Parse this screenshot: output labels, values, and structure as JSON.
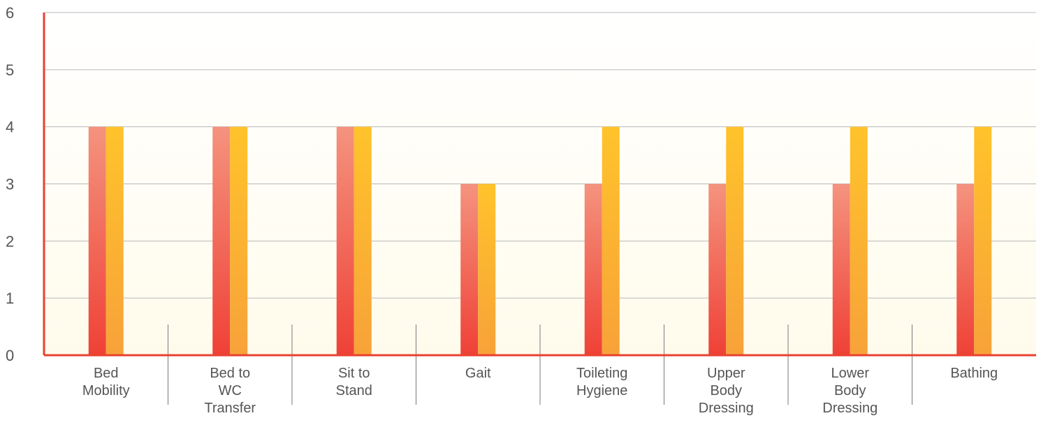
{
  "chart_data": {
    "type": "bar",
    "title": "",
    "xlabel": "",
    "ylabel": "",
    "ylim": [
      0,
      6
    ],
    "y_ticks": [
      "0",
      "1",
      "2",
      "3",
      "4",
      "5",
      "6"
    ],
    "grid": true,
    "categories": [
      [
        "Bed",
        "Mobility"
      ],
      [
        "Bed to",
        "WC",
        "Transfer"
      ],
      [
        "Sit to",
        "Stand"
      ],
      [
        "Gait"
      ],
      [
        "Toileting",
        "Hygiene"
      ],
      [
        "Upper",
        "Body",
        "Dressing"
      ],
      [
        "Lower",
        "Body",
        "Dressing"
      ],
      [
        "Bathing"
      ]
    ],
    "series": [
      {
        "values": [
          4,
          4,
          4,
          3,
          3,
          3,
          3,
          3
        ]
      },
      {
        "values": [
          4,
          4,
          4,
          3,
          4,
          4,
          4,
          4
        ]
      }
    ],
    "colors": {
      "series_1_top": "#f4937e",
      "series_1_bottom": "#ef4136",
      "series_2_top": "#ffc32b",
      "series_2_bottom": "#f7a239",
      "axis": "#e8412f",
      "grid": "#b8b8b8",
      "bg_fade": "#fffbec"
    }
  }
}
